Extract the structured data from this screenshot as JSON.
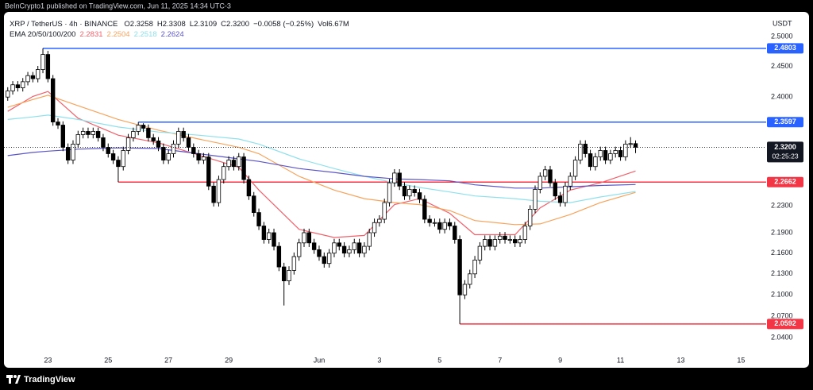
{
  "chart_data": {
    "type": "candlestick",
    "source": "BeInCrypto1 published on TradingView.com, Jun 11, 2025 14:34 UTC-3",
    "symbol": "XRP / TetherUS · 4h · BINANCE",
    "ohlc_header": [
      {
        "label": "O",
        "value": "2.3258"
      },
      {
        "label": "H",
        "value": "2.3308"
      },
      {
        "label": "L",
        "value": "2.3109"
      },
      {
        "label": "C",
        "value": "2.3200"
      }
    ],
    "change": "−0.0058 (−0.25%)",
    "volume_label": "Vol",
    "volume": "6.67M",
    "ema_label": "EMA 20/50/100/200",
    "currency": "USDT",
    "watermark": "TradingView",
    "up_color": "#ffffff",
    "down_color": "#000000",
    "x": [
      "2025-05-21 16:00",
      "2025-05-21 20:00",
      "2025-05-22 00:00",
      "2025-05-22 04:00",
      "2025-05-22 08:00",
      "2025-05-22 12:00",
      "2025-05-22 16:00",
      "2025-05-22 20:00",
      "2025-05-23 00:00",
      "2025-05-23 04:00",
      "2025-05-23 08:00",
      "2025-05-23 12:00",
      "2025-05-23 16:00",
      "2025-05-23 20:00",
      "2025-05-24 00:00",
      "2025-05-24 04:00",
      "2025-05-24 08:00",
      "2025-05-24 12:00",
      "2025-05-24 16:00",
      "2025-05-24 20:00",
      "2025-05-25 00:00",
      "2025-05-25 04:00",
      "2025-05-25 08:00",
      "2025-05-25 12:00",
      "2025-05-25 16:00",
      "2025-05-25 20:00",
      "2025-05-26 00:00",
      "2025-05-26 04:00",
      "2025-05-26 08:00",
      "2025-05-26 12:00",
      "2025-05-26 16:00",
      "2025-05-26 20:00",
      "2025-05-27 00:00",
      "2025-05-27 04:00",
      "2025-05-27 08:00",
      "2025-05-27 12:00",
      "2025-05-27 16:00",
      "2025-05-27 20:00",
      "2025-05-28 00:00",
      "2025-05-28 04:00",
      "2025-05-28 08:00",
      "2025-05-28 12:00",
      "2025-05-28 16:00",
      "2025-05-28 20:00",
      "2025-05-29 00:00",
      "2025-05-29 04:00",
      "2025-05-29 08:00",
      "2025-05-29 12:00",
      "2025-05-29 16:00",
      "2025-05-29 20:00",
      "2025-05-30 00:00",
      "2025-05-30 04:00",
      "2025-05-30 08:00",
      "2025-05-30 12:00",
      "2025-05-30 16:00",
      "2025-05-30 20:00",
      "2025-05-31 00:00",
      "2025-05-31 04:00",
      "2025-05-31 08:00",
      "2025-05-31 12:00",
      "2025-05-31 16:00",
      "2025-05-31 20:00",
      "2025-06-01 00:00",
      "2025-06-01 04:00",
      "2025-06-01 08:00",
      "2025-06-01 12:00",
      "2025-06-01 16:00",
      "2025-06-01 20:00",
      "2025-06-02 00:00",
      "2025-06-02 04:00",
      "2025-06-02 08:00",
      "2025-06-02 12:00",
      "2025-06-02 16:00",
      "2025-06-02 20:00",
      "2025-06-03 00:00",
      "2025-06-03 04:00",
      "2025-06-03 08:00",
      "2025-06-03 12:00",
      "2025-06-03 16:00",
      "2025-06-03 20:00",
      "2025-06-04 00:00",
      "2025-06-04 04:00",
      "2025-06-04 08:00",
      "2025-06-04 12:00",
      "2025-06-04 16:00",
      "2025-06-04 20:00",
      "2025-06-05 00:00",
      "2025-06-05 04:00",
      "2025-06-05 08:00",
      "2025-06-05 12:00",
      "2025-06-05 16:00",
      "2025-06-05 20:00",
      "2025-06-06 00:00",
      "2025-06-06 04:00",
      "2025-06-06 08:00",
      "2025-06-06 12:00",
      "2025-06-06 16:00",
      "2025-06-06 20:00",
      "2025-06-07 00:00",
      "2025-06-07 04:00",
      "2025-06-07 08:00",
      "2025-06-07 12:00",
      "2025-06-07 16:00",
      "2025-06-07 20:00",
      "2025-06-08 00:00",
      "2025-06-08 04:00",
      "2025-06-08 08:00",
      "2025-06-08 12:00",
      "2025-06-08 16:00",
      "2025-06-08 20:00",
      "2025-06-09 00:00",
      "2025-06-09 04:00",
      "2025-06-09 08:00",
      "2025-06-09 12:00",
      "2025-06-09 16:00",
      "2025-06-09 20:00",
      "2025-06-10 00:00",
      "2025-06-10 04:00",
      "2025-06-10 08:00",
      "2025-06-10 12:00",
      "2025-06-10 16:00",
      "2025-06-10 20:00",
      "2025-06-11 00:00",
      "2025-06-11 04:00",
      "2025-06-11 08:00",
      "2025-06-11 12:00"
    ],
    "open": [
      2.4,
      2.41,
      2.42,
      2.415,
      2.425,
      2.435,
      2.43,
      2.445,
      2.47,
      2.43,
      2.36,
      2.355,
      2.32,
      2.3,
      2.325,
      2.34,
      2.345,
      2.34,
      2.345,
      2.335,
      2.32,
      2.31,
      2.3,
      2.29,
      2.315,
      2.335,
      2.345,
      2.355,
      2.35,
      2.335,
      2.33,
      2.32,
      2.3,
      2.31,
      2.325,
      2.345,
      2.335,
      2.32,
      2.31,
      2.3,
      2.305,
      2.26,
      2.235,
      2.27,
      2.29,
      2.3,
      2.29,
      2.305,
      2.27,
      2.245,
      2.22,
      2.2,
      2.18,
      2.19,
      2.17,
      2.14,
      2.12,
      2.135,
      2.155,
      2.175,
      2.19,
      2.175,
      2.165,
      2.155,
      2.145,
      2.16,
      2.175,
      2.17,
      2.16,
      2.165,
      2.175,
      2.16,
      2.17,
      2.19,
      2.205,
      2.21,
      2.235,
      2.265,
      2.28,
      2.26,
      2.245,
      2.255,
      2.25,
      2.24,
      2.21,
      2.205,
      2.205,
      2.195,
      2.205,
      2.2,
      2.18,
      2.1,
      2.115,
      2.13,
      2.15,
      2.17,
      2.18,
      2.17,
      2.18,
      2.185,
      2.18,
      2.18,
      2.175,
      2.18,
      2.2,
      2.225,
      2.255,
      2.275,
      2.285,
      2.265,
      2.245,
      2.235,
      2.26,
      2.275,
      2.3,
      2.325,
      2.31,
      2.29,
      2.305,
      2.315,
      2.3,
      2.31,
      2.315,
      2.305,
      2.325,
      2.3258
    ],
    "high": [
      2.416,
      2.426,
      2.426,
      2.431,
      2.441,
      2.441,
      2.451,
      2.4803,
      2.476,
      2.436,
      2.366,
      2.361,
      2.326,
      2.331,
      2.346,
      2.351,
      2.351,
      2.351,
      2.351,
      2.341,
      2.326,
      2.316,
      2.306,
      2.321,
      2.341,
      2.351,
      2.3597,
      2.358,
      2.356,
      2.341,
      2.336,
      2.326,
      2.316,
      2.331,
      2.351,
      2.351,
      2.341,
      2.326,
      2.316,
      2.311,
      2.311,
      2.266,
      2.276,
      2.296,
      2.306,
      2.306,
      2.311,
      2.311,
      2.276,
      2.251,
      2.226,
      2.206,
      2.196,
      2.196,
      2.176,
      2.146,
      2.141,
      2.161,
      2.181,
      2.196,
      2.196,
      2.181,
      2.171,
      2.161,
      2.166,
      2.181,
      2.181,
      2.176,
      2.171,
      2.181,
      2.181,
      2.176,
      2.196,
      2.211,
      2.216,
      2.241,
      2.271,
      2.286,
      2.286,
      2.266,
      2.261,
      2.261,
      2.256,
      2.246,
      2.216,
      2.211,
      2.211,
      2.211,
      2.211,
      2.206,
      2.186,
      2.121,
      2.136,
      2.156,
      2.176,
      2.186,
      2.186,
      2.186,
      2.191,
      2.191,
      2.186,
      2.186,
      2.186,
      2.206,
      2.231,
      2.261,
      2.281,
      2.291,
      2.291,
      2.271,
      2.251,
      2.266,
      2.281,
      2.306,
      2.331,
      2.331,
      2.316,
      2.311,
      2.321,
      2.321,
      2.316,
      2.321,
      2.321,
      2.331,
      2.336,
      2.3308
    ],
    "low": [
      2.394,
      2.404,
      2.409,
      2.409,
      2.419,
      2.424,
      2.424,
      2.439,
      2.424,
      2.354,
      2.349,
      2.314,
      2.294,
      2.294,
      2.319,
      2.334,
      2.334,
      2.334,
      2.329,
      2.314,
      2.304,
      2.294,
      2.2662,
      2.284,
      2.309,
      2.329,
      2.339,
      2.344,
      2.329,
      2.324,
      2.314,
      2.294,
      2.294,
      2.304,
      2.319,
      2.329,
      2.314,
      2.304,
      2.294,
      2.294,
      2.254,
      2.229,
      2.229,
      2.264,
      2.284,
      2.284,
      2.284,
      2.264,
      2.239,
      2.214,
      2.194,
      2.174,
      2.174,
      2.164,
      2.134,
      2.085,
      2.114,
      2.129,
      2.149,
      2.169,
      2.169,
      2.159,
      2.149,
      2.139,
      2.139,
      2.154,
      2.164,
      2.154,
      2.154,
      2.159,
      2.154,
      2.154,
      2.164,
      2.184,
      2.199,
      2.204,
      2.229,
      2.259,
      2.254,
      2.239,
      2.239,
      2.244,
      2.234,
      2.204,
      2.199,
      2.199,
      2.189,
      2.189,
      2.194,
      2.174,
      2.0592,
      2.094,
      2.109,
      2.124,
      2.144,
      2.164,
      2.164,
      2.164,
      2.174,
      2.174,
      2.174,
      2.169,
      2.169,
      2.174,
      2.194,
      2.219,
      2.249,
      2.269,
      2.259,
      2.239,
      2.229,
      2.229,
      2.254,
      2.269,
      2.294,
      2.304,
      2.284,
      2.284,
      2.299,
      2.294,
      2.294,
      2.304,
      2.299,
      2.299,
      2.319,
      2.3109
    ],
    "close": [
      2.41,
      2.42,
      2.415,
      2.425,
      2.435,
      2.43,
      2.445,
      2.47,
      2.43,
      2.36,
      2.355,
      2.32,
      2.3,
      2.325,
      2.34,
      2.345,
      2.34,
      2.345,
      2.335,
      2.32,
      2.31,
      2.3,
      2.29,
      2.315,
      2.335,
      2.345,
      2.355,
      2.35,
      2.335,
      2.33,
      2.32,
      2.3,
      2.31,
      2.325,
      2.345,
      2.335,
      2.32,
      2.31,
      2.3,
      2.305,
      2.26,
      2.235,
      2.27,
      2.29,
      2.3,
      2.29,
      2.305,
      2.27,
      2.245,
      2.22,
      2.2,
      2.18,
      2.19,
      2.17,
      2.14,
      2.12,
      2.135,
      2.155,
      2.175,
      2.19,
      2.175,
      2.165,
      2.155,
      2.145,
      2.16,
      2.175,
      2.17,
      2.16,
      2.165,
      2.175,
      2.16,
      2.17,
      2.19,
      2.205,
      2.21,
      2.235,
      2.265,
      2.28,
      2.26,
      2.245,
      2.255,
      2.25,
      2.24,
      2.21,
      2.205,
      2.205,
      2.195,
      2.205,
      2.2,
      2.18,
      2.1,
      2.115,
      2.13,
      2.15,
      2.17,
      2.18,
      2.17,
      2.18,
      2.185,
      2.18,
      2.18,
      2.175,
      2.18,
      2.2,
      2.225,
      2.255,
      2.275,
      2.285,
      2.265,
      2.245,
      2.235,
      2.26,
      2.275,
      2.3,
      2.325,
      2.31,
      2.29,
      2.305,
      2.315,
      2.3,
      2.31,
      2.315,
      2.305,
      2.325,
      2.3258,
      2.32
    ],
    "series": [
      {
        "color": "#f0616b",
        "x": [
          "2025-05-21 16:00",
          "2025-05-22 12:00",
          "2025-05-23 00:00",
          "2025-05-24 00:00",
          "2025-05-25 08:00",
          "2025-05-26 16:00",
          "2025-05-28 00:00",
          "2025-05-29 08:00",
          "2025-05-30 00:00",
          "2025-05-31 08:00",
          "2025-06-01 12:00",
          "2025-06-02 12:00",
          "2025-06-03 12:00",
          "2025-06-04 08:00",
          "2025-06-05 08:00",
          "2025-06-06 04:00",
          "2025-06-07 12:00",
          "2025-06-08 08:00",
          "2025-06-09 08:00",
          "2025-06-10 08:00",
          "2025-06-11 12:00"
        ],
        "values": [
          2.377,
          2.401,
          2.409,
          2.366,
          2.339,
          2.327,
          2.308,
          2.289,
          2.254,
          2.195,
          2.183,
          2.186,
          2.232,
          2.241,
          2.219,
          2.187,
          2.187,
          2.227,
          2.254,
          2.265,
          2.2831
        ]
      },
      {
        "color": "#f7a35c",
        "x": [
          "2025-05-21 16:00",
          "2025-05-22 12:00",
          "2025-05-23 00:00",
          "2025-05-24 00:00",
          "2025-05-25 08:00",
          "2025-05-26 16:00",
          "2025-05-28 00:00",
          "2025-05-29 08:00",
          "2025-05-30 00:00",
          "2025-05-31 08:00",
          "2025-06-01 12:00",
          "2025-06-02 12:00",
          "2025-06-03 12:00",
          "2025-06-04 08:00",
          "2025-06-05 08:00",
          "2025-06-06 04:00",
          "2025-06-07 12:00",
          "2025-06-08 08:00",
          "2025-06-09 08:00",
          "2025-06-10 08:00",
          "2025-06-11 12:00"
        ],
        "values": [
          2.3835,
          2.396,
          2.403,
          2.386,
          2.364,
          2.347,
          2.333,
          2.32,
          2.31,
          2.275,
          2.254,
          2.241,
          2.235,
          2.232,
          2.223,
          2.208,
          2.202,
          2.203,
          2.217,
          2.235,
          2.2504
        ]
      },
      {
        "color": "#8fe0ec",
        "x": [
          "2025-05-21 16:00",
          "2025-05-22 12:00",
          "2025-05-23 00:00",
          "2025-05-24 00:00",
          "2025-05-25 08:00",
          "2025-05-26 16:00",
          "2025-05-28 00:00",
          "2025-05-29 08:00",
          "2025-05-30 00:00",
          "2025-05-31 08:00",
          "2025-06-01 12:00",
          "2025-06-02 12:00",
          "2025-06-03 12:00",
          "2025-06-04 08:00",
          "2025-06-05 08:00",
          "2025-06-06 04:00",
          "2025-06-07 12:00",
          "2025-06-08 08:00",
          "2025-06-09 08:00",
          "2025-06-10 08:00",
          "2025-06-11 12:00"
        ],
        "values": [
          2.364,
          2.368,
          2.371,
          2.364,
          2.352,
          2.344,
          2.339,
          2.333,
          2.325,
          2.302,
          2.287,
          2.275,
          2.265,
          2.258,
          2.251,
          2.245,
          2.241,
          2.237,
          2.235,
          2.2435,
          2.2518
        ]
      },
      {
        "color": "#5b55c8",
        "x": [
          "2025-05-21 16:00",
          "2025-05-22 12:00",
          "2025-05-23 00:00",
          "2025-05-24 00:00",
          "2025-05-25 08:00",
          "2025-05-26 16:00",
          "2025-05-28 00:00",
          "2025-05-29 08:00",
          "2025-05-30 00:00",
          "2025-05-31 08:00",
          "2025-06-01 12:00",
          "2025-06-02 12:00",
          "2025-06-03 12:00",
          "2025-06-04 08:00",
          "2025-06-05 08:00",
          "2025-06-06 04:00",
          "2025-06-07 12:00",
          "2025-06-08 08:00",
          "2025-06-09 08:00",
          "2025-06-10 08:00",
          "2025-06-11 12:00"
        ],
        "values": [
          2.307,
          2.312,
          2.314,
          2.317,
          2.319,
          2.318,
          2.31,
          2.302,
          2.298,
          2.287,
          2.281,
          2.275,
          2.271,
          2.27,
          2.268,
          2.262,
          2.257,
          2.257,
          2.259,
          2.261,
          2.2624
        ]
      }
    ],
    "levels": [
      {
        "value": 2.4803,
        "color": "#2962ff",
        "from": "2025-05-22 20:00"
      },
      {
        "value": 2.3597,
        "color": "#2962ff",
        "from": "2025-05-26 00:00"
      },
      {
        "value": 2.2662,
        "color": "#f23645",
        "from": "2025-05-25 08:00"
      },
      {
        "value": 2.0592,
        "color": "#f23645",
        "from": "2025-06-05 16:00"
      }
    ],
    "last_price": {
      "label": "2.3200",
      "countdown": "02:25:23"
    },
    "xlim": [
      "2025-05-21 13:00",
      "2025-06-15 20:00"
    ],
    "xticks": [
      {
        "value": "2025-05-23",
        "label": "23"
      },
      {
        "value": "2025-05-25",
        "label": "25"
      },
      {
        "value": "2025-05-27",
        "label": "27"
      },
      {
        "value": "2025-05-29",
        "label": "29"
      },
      {
        "value": "2025-06-01",
        "label": "Jun"
      },
      {
        "value": "2025-06-03",
        "label": "3"
      },
      {
        "value": "2025-06-05",
        "label": "5"
      },
      {
        "value": "2025-06-07",
        "label": "7"
      },
      {
        "value": "2025-06-09",
        "label": "9"
      },
      {
        "value": "2025-06-11",
        "label": "11"
      },
      {
        "value": "2025-06-13",
        "label": "13"
      },
      {
        "value": "2025-06-15",
        "label": "15"
      }
    ],
    "ylim": [
      2.024,
      2.542
    ],
    "log_scale": true,
    "grid": false,
    "yticks": [
      {
        "value": 2.5,
        "label": "2.5000"
      },
      {
        "value": 2.45,
        "label": "2.4500"
      },
      {
        "value": 2.4,
        "label": "2.4000"
      },
      {
        "value": 2.23,
        "label": "2.2300"
      },
      {
        "value": 2.19,
        "label": "2.1900"
      },
      {
        "value": 2.16,
        "label": "2.1600"
      },
      {
        "value": 2.13,
        "label": "2.1300"
      },
      {
        "value": 2.1,
        "label": "2.1000"
      },
      {
        "value": 2.07,
        "label": "2.0700"
      },
      {
        "value": 2.04,
        "label": "2.0400"
      }
    ]
  }
}
